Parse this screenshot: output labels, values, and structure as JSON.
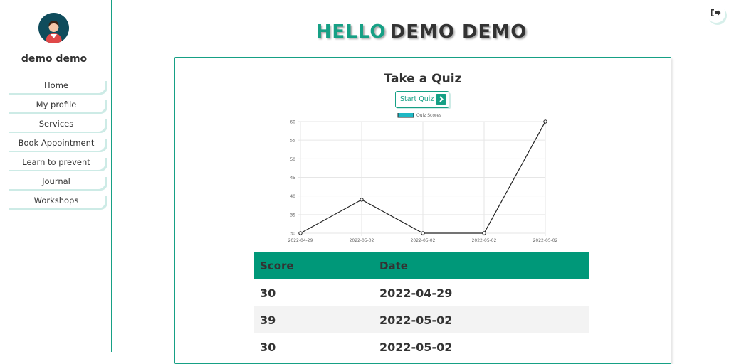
{
  "user": {
    "name": "demo demo"
  },
  "sidebar": {
    "items": [
      {
        "label": "Home"
      },
      {
        "label": "My profile"
      },
      {
        "label": "Services"
      },
      {
        "label": "Book Appointment"
      },
      {
        "label": "Learn to prevent"
      },
      {
        "label": "Journal"
      },
      {
        "label": "Workshops"
      }
    ]
  },
  "header": {
    "greeting": "HELLO",
    "name": "DEMO DEMO"
  },
  "quiz": {
    "title": "Take a Quiz",
    "start_label": "Start Quiz"
  },
  "chart_data": {
    "type": "line",
    "x": [
      "2022-04-29",
      "2022-05-02",
      "2022-05-02",
      "2022-05-02",
      "2022-05-02"
    ],
    "series": [
      {
        "name": "Quiz Scores",
        "values": [
          30,
          39,
          30,
          30,
          60
        ]
      }
    ],
    "ylim": [
      30,
      60
    ],
    "yticks": [
      30,
      35,
      40,
      45,
      50,
      55,
      60
    ],
    "grid": true,
    "legend": "top"
  },
  "table": {
    "headers": [
      "Score",
      "Date"
    ],
    "rows": [
      [
        "30",
        "2022-04-29"
      ],
      [
        "39",
        "2022-05-02"
      ],
      [
        "30",
        "2022-05-02"
      ]
    ]
  },
  "colors": {
    "accent": "#16a085",
    "table_header": "#009879",
    "avatar_bg": "#0f4c5c"
  },
  "icons": {
    "logout": "sign-out-icon",
    "start": "chevron-right-icon",
    "avatar": "user-avatar-icon"
  }
}
